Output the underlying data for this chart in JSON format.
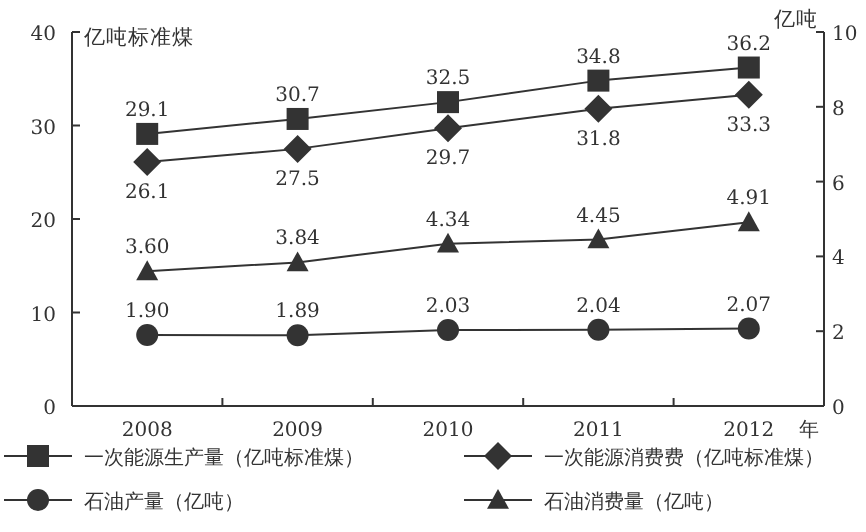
{
  "chart_data": {
    "type": "line",
    "categories": [
      "2008",
      "2009",
      "2010",
      "2011",
      "2012"
    ],
    "xlabel": "年",
    "ylabel": "亿吨标准煤",
    "y2label": "亿吨",
    "ylim": [
      0,
      40
    ],
    "yticks": [
      0,
      10,
      20,
      30,
      40
    ],
    "y2lim": [
      0,
      10
    ],
    "y2ticks": [
      0,
      2,
      4,
      6,
      8,
      10
    ],
    "legend": "bottom",
    "line_style": "solid",
    "series": [
      {
        "name": "一次能源生产量（亿吨标准煤）",
        "color": "#333333",
        "marker": "square",
        "values": [
          29.1,
          30.7,
          32.5,
          34.8,
          36.2
        ],
        "value_labels": [
          "29.1",
          "30.7",
          "32.5",
          "34.8",
          "36.2"
        ]
      },
      {
        "name": "一次能源消费费（亿吨标准煤）",
        "color": "#333333",
        "marker": "diamond",
        "values": [
          26.1,
          27.5,
          29.7,
          31.8,
          33.3
        ],
        "value_labels": [
          "26.1",
          "27.5",
          "29.7",
          "31.8",
          "33.3"
        ]
      },
      {
        "name": "石油产量（亿吨）",
        "color": "#333333",
        "marker": "circle",
        "axis": "y2",
        "values": [
          1.9,
          1.89,
          2.03,
          2.04,
          2.07
        ],
        "value_labels": [
          "1.90",
          "1.89",
          "2.03",
          "2.04",
          "2.07"
        ]
      },
      {
        "name": "石油消费量（亿吨）",
        "color": "#333333",
        "marker": "triangle",
        "axis": "y2",
        "values": [
          3.6,
          3.84,
          4.34,
          4.45,
          4.91
        ],
        "value_labels": [
          "3.60",
          "3.84",
          "4.34",
          "4.45",
          "4.91"
        ]
      }
    ]
  }
}
